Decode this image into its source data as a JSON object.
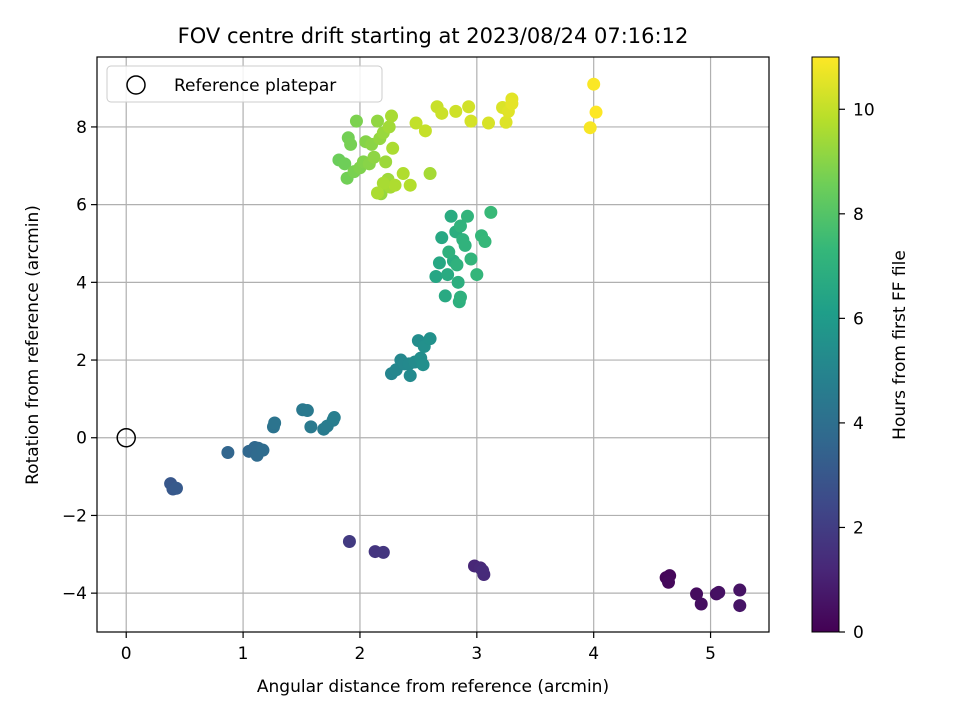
{
  "chart_data": {
    "type": "scatter",
    "title": "FOV centre drift starting at 2023/08/24 07:16:12",
    "xlabel": "Angular distance from reference (arcmin)",
    "ylabel": "Rotation from reference (arcmin)",
    "xlim": [
      -0.25,
      5.5
    ],
    "ylim": [
      -5.0,
      9.8
    ],
    "xticks": [
      0,
      1,
      2,
      3,
      4,
      5
    ],
    "yticks": [
      -4,
      -2,
      0,
      2,
      4,
      6,
      8
    ],
    "grid": true,
    "legend": {
      "placement": "upper-left",
      "entries": [
        "Reference platepar"
      ]
    },
    "reference_point": {
      "x": 0,
      "y": 0
    },
    "colorbar": {
      "label": "Hours from first FF file",
      "colormap": "viridis",
      "range": [
        0,
        11
      ],
      "ticks": [
        0,
        2,
        4,
        6,
        8,
        10
      ]
    },
    "colormap_stops": [
      "#440154",
      "#482878",
      "#3e4989",
      "#31688e",
      "#26828e",
      "#1f9e89",
      "#35b779",
      "#6ece58",
      "#b5de2b",
      "#fde725"
    ],
    "points": [
      [
        4.62,
        -3.6,
        0.15
      ],
      [
        4.65,
        -3.55,
        0.2
      ],
      [
        4.64,
        -3.72,
        0.25
      ],
      [
        4.88,
        -4.02,
        0.35
      ],
      [
        4.92,
        -4.28,
        0.4
      ],
      [
        5.05,
        -4.02,
        0.45
      ],
      [
        5.07,
        -3.98,
        0.5
      ],
      [
        5.25,
        -3.92,
        0.55
      ],
      [
        5.25,
        -4.32,
        0.6
      ],
      [
        2.98,
        -3.3,
        1.2
      ],
      [
        3.03,
        -3.35,
        1.25
      ],
      [
        3.06,
        -3.52,
        1.3
      ],
      [
        3.05,
        -3.42,
        1.35
      ],
      [
        2.13,
        -2.93,
        1.7
      ],
      [
        2.2,
        -2.95,
        1.75
      ],
      [
        1.91,
        -2.67,
        1.9
      ],
      [
        0.38,
        -1.18,
        3.0
      ],
      [
        0.4,
        -1.32,
        3.05
      ],
      [
        0.43,
        -1.3,
        3.1
      ],
      [
        0.87,
        -0.38,
        3.6
      ],
      [
        1.05,
        -0.35,
        3.65
      ],
      [
        1.1,
        -0.25,
        3.7
      ],
      [
        1.13,
        -0.27,
        3.75
      ],
      [
        1.12,
        -0.45,
        3.8
      ],
      [
        1.17,
        -0.32,
        3.85
      ],
      [
        1.26,
        0.28,
        4.2
      ],
      [
        1.27,
        0.38,
        4.25
      ],
      [
        1.51,
        0.72,
        4.4
      ],
      [
        1.55,
        0.7,
        4.45
      ],
      [
        1.58,
        0.28,
        4.5
      ],
      [
        1.69,
        0.22,
        4.55
      ],
      [
        1.72,
        0.3,
        4.6
      ],
      [
        1.77,
        0.45,
        4.65
      ],
      [
        1.78,
        0.52,
        4.7
      ],
      [
        2.27,
        1.65,
        5.0
      ],
      [
        2.31,
        1.75,
        5.05
      ],
      [
        2.35,
        2.0,
        5.1
      ],
      [
        2.38,
        1.9,
        5.15
      ],
      [
        2.42,
        1.9,
        5.2
      ],
      [
        2.43,
        1.6,
        5.25
      ],
      [
        2.47,
        1.95,
        5.3
      ],
      [
        2.5,
        2.5,
        5.35
      ],
      [
        2.52,
        2.05,
        5.4
      ],
      [
        2.54,
        1.88,
        5.45
      ],
      [
        2.55,
        2.35,
        5.5
      ],
      [
        2.6,
        2.55,
        5.55
      ],
      [
        2.65,
        4.15,
        6.5
      ],
      [
        2.68,
        4.5,
        6.55
      ],
      [
        2.7,
        5.15,
        6.6
      ],
      [
        2.73,
        3.65,
        6.65
      ],
      [
        2.75,
        4.2,
        6.7
      ],
      [
        2.78,
        5.7,
        6.75
      ],
      [
        2.8,
        4.55,
        6.8
      ],
      [
        2.82,
        5.3,
        6.85
      ],
      [
        2.84,
        4.0,
        6.9
      ],
      [
        2.85,
        3.5,
        6.95
      ],
      [
        2.86,
        3.62,
        7.0
      ],
      [
        2.88,
        5.1,
        7.05
      ],
      [
        2.9,
        4.95,
        7.1
      ],
      [
        2.92,
        5.7,
        7.15
      ],
      [
        2.95,
        4.6,
        7.2
      ],
      [
        3.0,
        4.2,
        7.25
      ],
      [
        3.04,
        5.2,
        7.3
      ],
      [
        3.07,
        5.05,
        7.35
      ],
      [
        3.12,
        5.8,
        7.4
      ],
      [
        2.76,
        4.78,
        7.0
      ],
      [
        2.83,
        4.45,
        7.05
      ],
      [
        2.86,
        5.45,
        7.1
      ],
      [
        1.82,
        7.15,
        8.5
      ],
      [
        1.87,
        7.05,
        8.55
      ],
      [
        1.89,
        6.68,
        8.6
      ],
      [
        1.9,
        7.72,
        8.65
      ],
      [
        1.92,
        7.55,
        8.7
      ],
      [
        1.95,
        6.85,
        8.75
      ],
      [
        1.97,
        8.15,
        8.8
      ],
      [
        2.0,
        6.95,
        8.85
      ],
      [
        2.03,
        7.1,
        8.9
      ],
      [
        2.05,
        7.62,
        8.95
      ],
      [
        2.08,
        7.05,
        9.0
      ],
      [
        2.1,
        7.55,
        9.05
      ],
      [
        2.12,
        7.22,
        9.1
      ],
      [
        2.15,
        8.15,
        9.15
      ],
      [
        2.17,
        7.7,
        9.2
      ],
      [
        2.18,
        6.28,
        9.25
      ],
      [
        2.2,
        7.85,
        9.3
      ],
      [
        2.22,
        7.1,
        9.35
      ],
      [
        2.24,
        6.65,
        9.4
      ],
      [
        2.25,
        8.0,
        9.45
      ],
      [
        2.26,
        6.45,
        9.5
      ],
      [
        2.27,
        8.28,
        9.55
      ],
      [
        2.28,
        7.45,
        9.6
      ],
      [
        2.3,
        6.5,
        9.65
      ],
      [
        2.37,
        6.8,
        9.7
      ],
      [
        2.43,
        6.5,
        9.75
      ],
      [
        2.6,
        6.8,
        9.5
      ],
      [
        2.2,
        6.55,
        9.55
      ],
      [
        2.15,
        6.3,
        9.6
      ],
      [
        2.48,
        8.1,
        10.0
      ],
      [
        2.56,
        7.9,
        10.05
      ],
      [
        2.66,
        8.52,
        10.1
      ],
      [
        2.7,
        8.35,
        10.15
      ],
      [
        2.82,
        8.4,
        10.2
      ],
      [
        2.93,
        8.52,
        10.25
      ],
      [
        2.95,
        8.15,
        10.3
      ],
      [
        3.1,
        8.1,
        10.35
      ],
      [
        3.22,
        8.5,
        10.4
      ],
      [
        3.25,
        8.12,
        10.45
      ],
      [
        3.27,
        8.4,
        10.5
      ],
      [
        3.3,
        8.72,
        10.55
      ],
      [
        3.3,
        8.6,
        10.6
      ],
      [
        3.97,
        7.98,
        10.9
      ],
      [
        4.0,
        9.1,
        10.95
      ],
      [
        4.02,
        8.38,
        11.0
      ]
    ]
  }
}
